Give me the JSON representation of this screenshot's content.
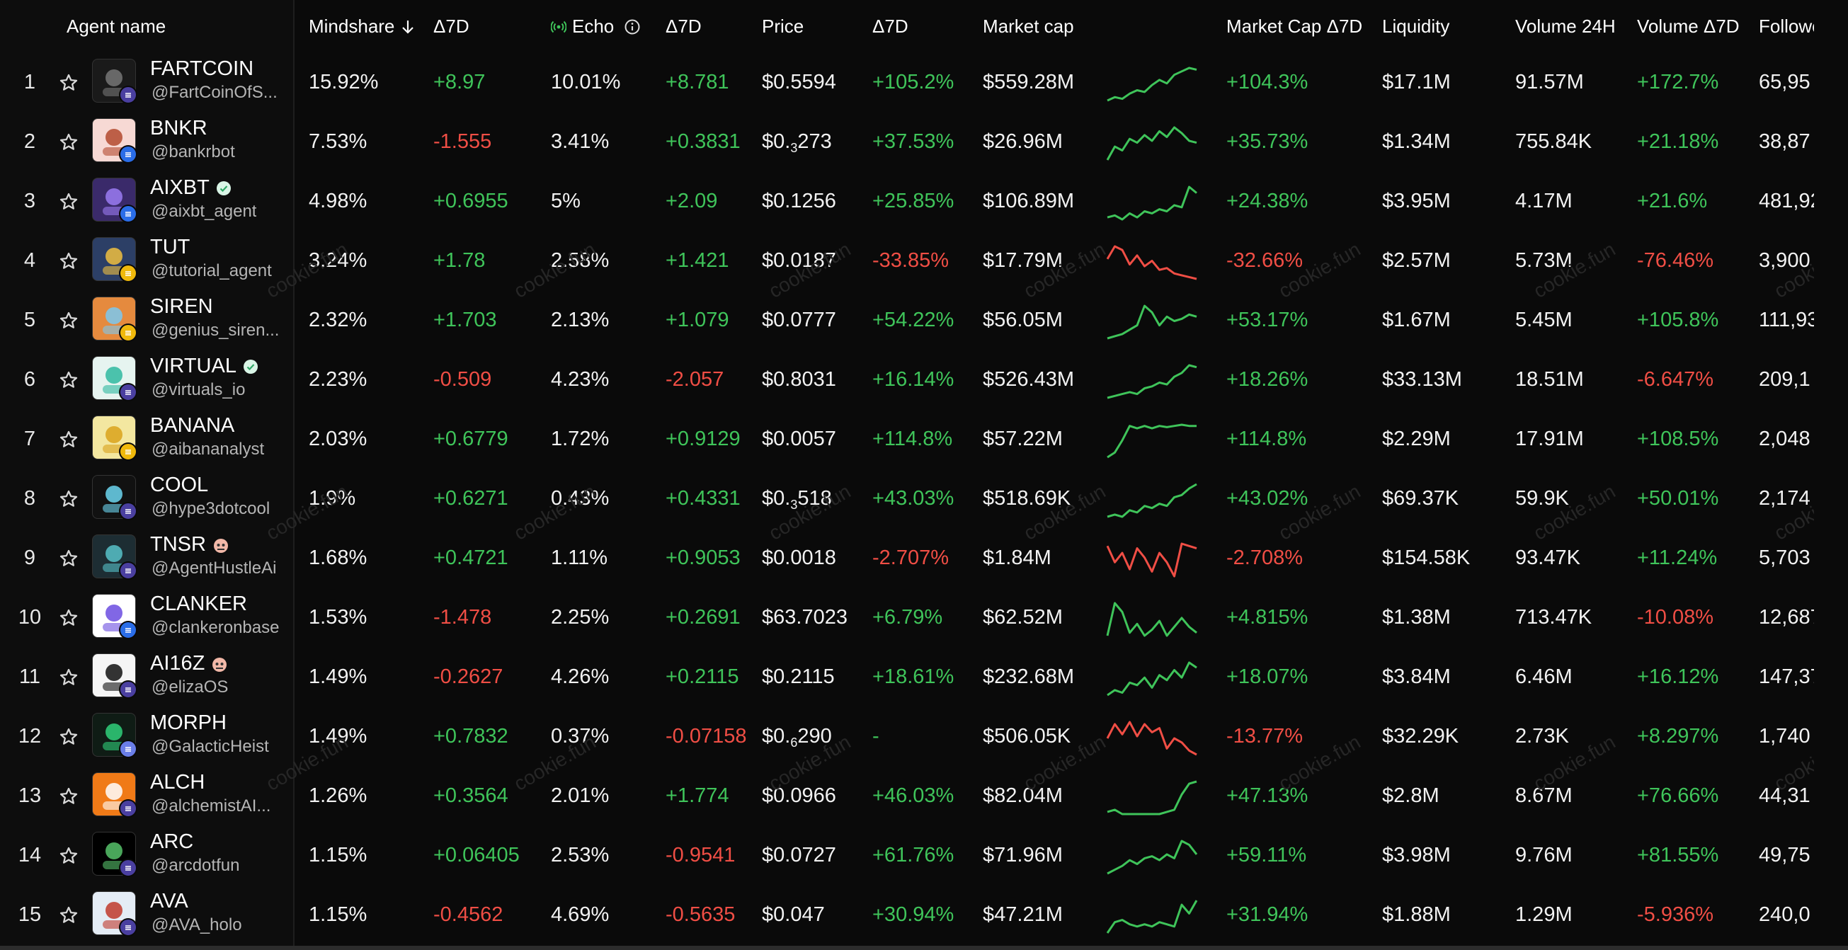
{
  "columns": {
    "agent_name": "Agent name",
    "mindshare": "Mindshare",
    "mindshare_d7": "Δ7D",
    "echo": "Echo",
    "echo_d7": "Δ7D",
    "price": "Price",
    "price_d7": "Δ7D",
    "market_cap": "Market cap",
    "market_cap_d7": "Market Cap Δ7D",
    "liquidity": "Liquidity",
    "volume_24h": "Volume 24H",
    "volume_d7": "Volume Δ7D",
    "followers": "Followe"
  },
  "watermark": "cookie.fun",
  "colors": {
    "positive": "#3fc45a",
    "negative": "#f04e45",
    "background": "#0a0a0a"
  },
  "rows": [
    {
      "rank": "1",
      "name": "FARTCOIN",
      "handle": "@FartCoinOfS...",
      "mindshare": "15.92%",
      "mindshare_d7": "+8.97",
      "echo": "10.01%",
      "echo_d7": "+8.781",
      "price": "$0.5594",
      "price_d7": "+105.2%",
      "market_cap": "$559.28M",
      "market_cap_d7": "+104.3%",
      "liquidity": "$17.1M",
      "volume_24h": "91.57M",
      "volume_d7": "+172.7%",
      "followers": "65,95",
      "spark": [
        10,
        14,
        12,
        18,
        22,
        20,
        28,
        34,
        30,
        40,
        44,
        48,
        46
      ]
    },
    {
      "rank": "2",
      "name": "BNKR",
      "handle": "@bankrbot",
      "mindshare": "7.53%",
      "mindshare_d7": "-1.555",
      "echo": "3.41%",
      "echo_d7": "+0.3831",
      "price_sub": "3",
      "price_pre": "$0.",
      "price_post": "273",
      "price_d7": "+37.53%",
      "market_cap": "$26.96M",
      "market_cap_d7": "+35.73%",
      "liquidity": "$1.34M",
      "volume_24h": "755.84K",
      "volume_d7": "+21.18%",
      "followers": "38,87",
      "spark": [
        10,
        24,
        20,
        32,
        28,
        36,
        30,
        40,
        34,
        44,
        38,
        30,
        28
      ]
    },
    {
      "rank": "3",
      "name": "AIXBT",
      "handle": "@aixbt_agent",
      "verified": true,
      "mindshare": "4.98%",
      "mindshare_d7": "+0.6955",
      "echo": "5%",
      "echo_d7": "+2.09",
      "price": "$0.1256",
      "price_d7": "+25.85%",
      "market_cap": "$106.89M",
      "market_cap_d7": "+24.38%",
      "liquidity": "$3.95M",
      "volume_24h": "4.17M",
      "volume_d7": "+21.6%",
      "followers": "481,92",
      "spark": [
        10,
        12,
        8,
        14,
        10,
        16,
        14,
        18,
        16,
        22,
        20,
        40,
        34
      ]
    },
    {
      "rank": "4",
      "name": "TUT",
      "handle": "@tutorial_agent",
      "mindshare": "3.24%",
      "mindshare_d7": "+1.78",
      "echo": "2.58%",
      "echo_d7": "+1.421",
      "price": "$0.0187",
      "price_d7": "-33.85%",
      "market_cap": "$17.79M",
      "market_cap_d7": "-32.66%",
      "liquidity": "$2.57M",
      "volume_24h": "5.73M",
      "volume_d7": "-76.46%",
      "followers": "3,900",
      "spark": [
        30,
        44,
        40,
        24,
        34,
        22,
        28,
        18,
        20,
        14,
        12,
        10,
        8
      ]
    },
    {
      "rank": "5",
      "name": "SIREN",
      "handle": "@genius_siren...",
      "mindshare": "2.32%",
      "mindshare_d7": "+1.703",
      "echo": "2.13%",
      "echo_d7": "+1.079",
      "price": "$0.0777",
      "price_d7": "+54.22%",
      "market_cap": "$56.05M",
      "market_cap_d7": "+53.17%",
      "liquidity": "$1.67M",
      "volume_24h": "5.45M",
      "volume_d7": "+105.8%",
      "followers": "111,93",
      "spark": [
        10,
        12,
        14,
        18,
        22,
        40,
        34,
        22,
        30,
        26,
        28,
        32,
        30
      ]
    },
    {
      "rank": "6",
      "name": "VIRTUAL",
      "handle": "@virtuals_io",
      "verified": true,
      "mindshare": "2.23%",
      "mindshare_d7": "-0.509",
      "echo": "4.23%",
      "echo_d7": "-2.057",
      "price": "$0.8031",
      "price_d7": "+16.14%",
      "market_cap": "$526.43M",
      "market_cap_d7": "+18.26%",
      "liquidity": "$33.13M",
      "volume_24h": "18.51M",
      "volume_d7": "-6.647%",
      "followers": "209,1",
      "spark": [
        10,
        12,
        14,
        16,
        14,
        20,
        22,
        26,
        24,
        32,
        36,
        44,
        42
      ]
    },
    {
      "rank": "7",
      "name": "BANANA",
      "handle": "@aibananalyst",
      "mindshare": "2.03%",
      "mindshare_d7": "+0.6779",
      "echo": "1.72%",
      "echo_d7": "+0.9129",
      "price": "$0.0057",
      "price_d7": "+114.8%",
      "market_cap": "$57.22M",
      "market_cap_d7": "+114.8%",
      "liquidity": "$2.29M",
      "volume_24h": "17.91M",
      "volume_d7": "+108.5%",
      "followers": "2,048",
      "spark": [
        10,
        14,
        24,
        36,
        34,
        36,
        34,
        36,
        35,
        36,
        37,
        36,
        36
      ]
    },
    {
      "rank": "8",
      "name": "COOL",
      "handle": "@hype3dotcool",
      "mindshare": "1.9%",
      "mindshare_d7": "+0.6271",
      "echo": "0.43%",
      "echo_d7": "+0.4331",
      "price_sub": "3",
      "price_pre": "$0.",
      "price_post": "518",
      "price_d7": "+43.03%",
      "market_cap": "$518.69K",
      "market_cap_d7": "+43.02%",
      "liquidity": "$69.37K",
      "volume_24h": "59.9K",
      "volume_d7": "+50.01%",
      "followers": "2,174",
      "spark": [
        10,
        12,
        10,
        16,
        14,
        20,
        18,
        22,
        20,
        28,
        30,
        36,
        40
      ]
    },
    {
      "rank": "9",
      "name": "TNSR",
      "handle": "@AgentHustleAi",
      "mindshare": "1.68%",
      "mindshare_d7": "+0.4721",
      "echo": "1.11%",
      "echo_d7": "+0.9053",
      "price": "$0.0018",
      "price_d7": "-2.707%",
      "market_cap": "$1.84M",
      "market_cap_d7": "-2.708%",
      "liquidity": "$154.58K",
      "volume_24h": "93.47K",
      "volume_d7": "+11.24%",
      "followers": "5,703",
      "spark": [
        36,
        22,
        30,
        16,
        34,
        26,
        14,
        30,
        22,
        10,
        38,
        36,
        34
      ]
    },
    {
      "rank": "10",
      "name": "CLANKER",
      "handle": "@clankeronbase",
      "mindshare": "1.53%",
      "mindshare_d7": "-1.478",
      "echo": "2.25%",
      "echo_d7": "+0.2691",
      "price": "$63.7023",
      "price_d7": "+6.79%",
      "market_cap": "$62.52M",
      "market_cap_d7": "+4.815%",
      "liquidity": "$1.38M",
      "volume_24h": "713.47K",
      "volume_d7": "-10.08%",
      "followers": "12,687",
      "spark": [
        14,
        36,
        30,
        16,
        22,
        14,
        18,
        24,
        14,
        20,
        26,
        20,
        16
      ]
    },
    {
      "rank": "11",
      "name": "AI16Z",
      "handle": "@elizaOS",
      "mindshare": "1.49%",
      "mindshare_d7": "-0.2627",
      "echo": "4.26%",
      "echo_d7": "+0.2115",
      "price": "$0.2115",
      "price_d7": "+18.61%",
      "market_cap": "$232.68M",
      "market_cap_d7": "+18.07%",
      "liquidity": "$3.84M",
      "volume_24h": "6.46M",
      "volume_d7": "+16.12%",
      "followers": "147,37",
      "spark": [
        10,
        14,
        12,
        20,
        18,
        24,
        16,
        26,
        22,
        30,
        24,
        36,
        32
      ]
    },
    {
      "rank": "12",
      "name": "MORPH",
      "handle": "@GalacticHeist",
      "mindshare": "1.49%",
      "mindshare_d7": "+0.7832",
      "echo": "0.37%",
      "echo_d7": "-0.07158",
      "price_sub": "6",
      "price_pre": "$0.",
      "price_post": "290",
      "price_d7": "-",
      "market_cap": "$506.05K",
      "market_cap_d7": "-13.77%",
      "liquidity": "$32.29K",
      "volume_24h": "2.73K",
      "volume_d7": "+8.297%",
      "followers": "1,740",
      "spark": [
        30,
        44,
        34,
        46,
        32,
        44,
        36,
        40,
        20,
        30,
        26,
        18,
        14
      ]
    },
    {
      "rank": "13",
      "name": "ALCH",
      "handle": "@alchemistAI...",
      "mindshare": "1.26%",
      "mindshare_d7": "+0.3564",
      "echo": "2.01%",
      "echo_d7": "+1.774",
      "price": "$0.0966",
      "price_d7": "+46.03%",
      "market_cap": "$82.04M",
      "market_cap_d7": "+47.13%",
      "liquidity": "$2.8M",
      "volume_24h": "8.67M",
      "volume_d7": "+76.66%",
      "followers": "44,31",
      "spark": [
        14,
        16,
        12,
        12,
        12,
        12,
        12,
        12,
        14,
        16,
        30,
        40,
        42
      ]
    },
    {
      "rank": "14",
      "name": "ARC",
      "handle": "@arcdotfun",
      "mindshare": "1.15%",
      "mindshare_d7": "+0.06405",
      "echo": "2.53%",
      "echo_d7": "-0.9541",
      "price": "$0.0727",
      "price_d7": "+61.76%",
      "market_cap": "$71.96M",
      "market_cap_d7": "+59.11%",
      "liquidity": "$3.98M",
      "volume_24h": "9.76M",
      "volume_d7": "+81.55%",
      "followers": "49,75",
      "spark": [
        10,
        14,
        18,
        24,
        20,
        26,
        28,
        24,
        30,
        26,
        44,
        40,
        30
      ]
    },
    {
      "rank": "15",
      "name": "AVA",
      "handle": "@AVA_holo",
      "mindshare": "1.15%",
      "mindshare_d7": "-0.4562",
      "echo": "4.69%",
      "echo_d7": "-0.5635",
      "price": "$0.047",
      "price_d7": "+30.94%",
      "market_cap": "$47.21M",
      "market_cap_d7": "+31.94%",
      "liquidity": "$1.88M",
      "volume_24h": "1.29M",
      "volume_d7": "-5.936%",
      "followers": "240,0",
      "spark": [
        10,
        20,
        22,
        18,
        16,
        18,
        16,
        20,
        18,
        16,
        36,
        28,
        40
      ]
    }
  ]
}
